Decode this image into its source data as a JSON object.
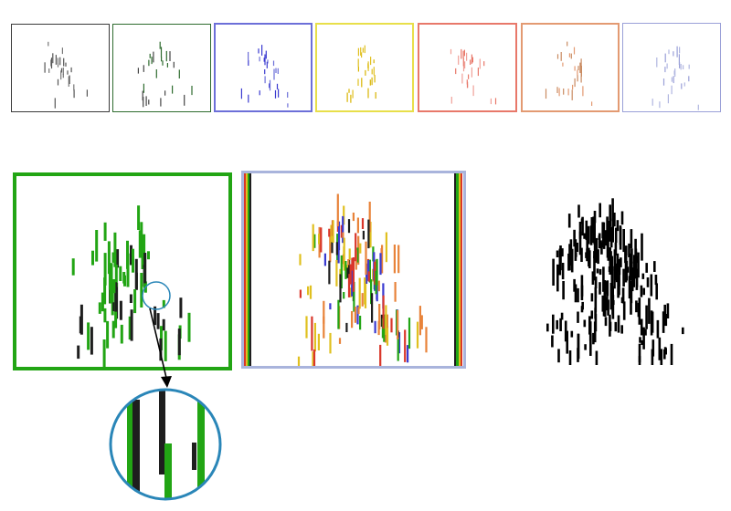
{
  "figure": {
    "thumbnails": [
      {
        "name": "black",
        "color": "#3a3a3a"
      },
      {
        "name": "green",
        "color": "#2e6b2e"
      },
      {
        "name": "blue",
        "color": "#6c6fd8"
      },
      {
        "name": "yellow",
        "color": "#e8df4a"
      },
      {
        "name": "red",
        "color": "#e8786a"
      },
      {
        "name": "orange",
        "color": "#e39a72"
      },
      {
        "name": "lavender",
        "color": "#9aa0d8"
      }
    ],
    "colors": {
      "green": "#22a514",
      "dark": "#1e1e1e",
      "blue_frame": "#a9b4dc",
      "zoom_ring": "#2a86b8",
      "yellow": "#e0c020",
      "orange": "#e8833a",
      "red": "#d9362a",
      "blue": "#3a3ad0",
      "black": "#000000"
    }
  }
}
